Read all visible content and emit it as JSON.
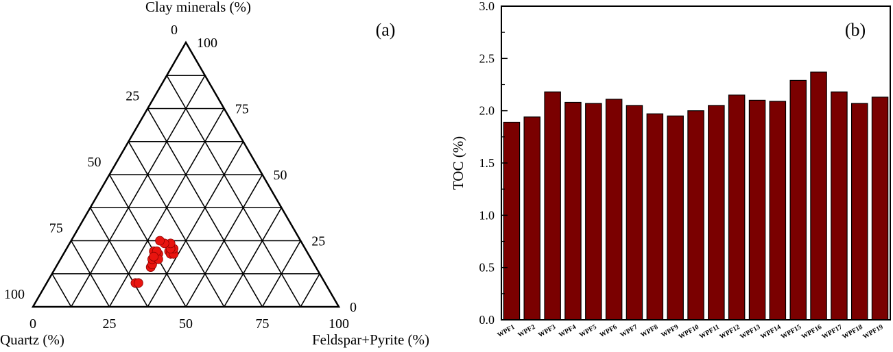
{
  "chart_data": [
    {
      "type": "scatter",
      "panel_label": "(a)",
      "chart_kind": "ternary",
      "axes": {
        "top": "Clay minerals (%)",
        "left": "Quartz (%)",
        "right": "Feldspar+Pyrite (%)"
      },
      "tick_values": [
        0,
        25,
        50,
        75,
        100
      ],
      "point_color": "#e8140f",
      "points": [
        {
          "quartz": 54,
          "feldspar_pyrite": 31,
          "clay": 15
        },
        {
          "quartz": 53,
          "feldspar_pyrite": 31,
          "clay": 16
        },
        {
          "quartz": 52,
          "feldspar_pyrite": 30,
          "clay": 18
        },
        {
          "quartz": 51,
          "feldspar_pyrite": 30,
          "clay": 19
        },
        {
          "quartz": 49,
          "feldspar_pyrite": 31,
          "clay": 20
        },
        {
          "quartz": 50,
          "feldspar_pyrite": 32,
          "clay": 18
        },
        {
          "quartz": 50,
          "feldspar_pyrite": 29,
          "clay": 21
        },
        {
          "quartz": 49,
          "feldspar_pyrite": 30,
          "clay": 21
        },
        {
          "quartz": 51,
          "feldspar_pyrite": 30,
          "clay": 19
        },
        {
          "quartz": 45,
          "feldspar_pyrite": 34,
          "clay": 21
        },
        {
          "quartz": 45,
          "feldspar_pyrite": 35,
          "clay": 20
        },
        {
          "quartz": 44,
          "feldspar_pyrite": 36,
          "clay": 20
        },
        {
          "quartz": 43,
          "feldspar_pyrite": 35,
          "clay": 22
        },
        {
          "quartz": 44,
          "feldspar_pyrite": 34,
          "clay": 22
        },
        {
          "quartz": 43,
          "feldspar_pyrite": 33,
          "clay": 24
        },
        {
          "quartz": 45,
          "feldspar_pyrite": 31,
          "clay": 24
        },
        {
          "quartz": 46,
          "feldspar_pyrite": 29,
          "clay": 25
        },
        {
          "quartz": 62,
          "feldspar_pyrite": 29,
          "clay": 9
        },
        {
          "quartz": 61,
          "feldspar_pyrite": 30,
          "clay": 9
        }
      ]
    },
    {
      "type": "bar",
      "panel_label": "(b)",
      "ylabel": "TOC (%)",
      "xlabel": "",
      "ylim": [
        0,
        3.0
      ],
      "yticks": [
        "0.0",
        "0.5",
        "1.0",
        "1.5",
        "2.0",
        "2.5",
        "3.0"
      ],
      "bar_color": "#7a0000",
      "categories": [
        "WPF1",
        "WPF2",
        "WPF3",
        "WPF4",
        "WPF5",
        "WPF6",
        "WPF7",
        "WPF8",
        "WPF9",
        "WPF10",
        "WPF11",
        "WPF12",
        "WPF13",
        "WPF14",
        "WPF15",
        "WPF16",
        "WPF17",
        "WPF18",
        "WPF19"
      ],
      "values": [
        1.89,
        1.94,
        2.18,
        2.08,
        2.07,
        2.11,
        2.05,
        1.97,
        1.95,
        2.0,
        2.05,
        2.15,
        2.1,
        2.09,
        2.29,
        2.37,
        2.18,
        2.07,
        2.13
      ]
    }
  ]
}
